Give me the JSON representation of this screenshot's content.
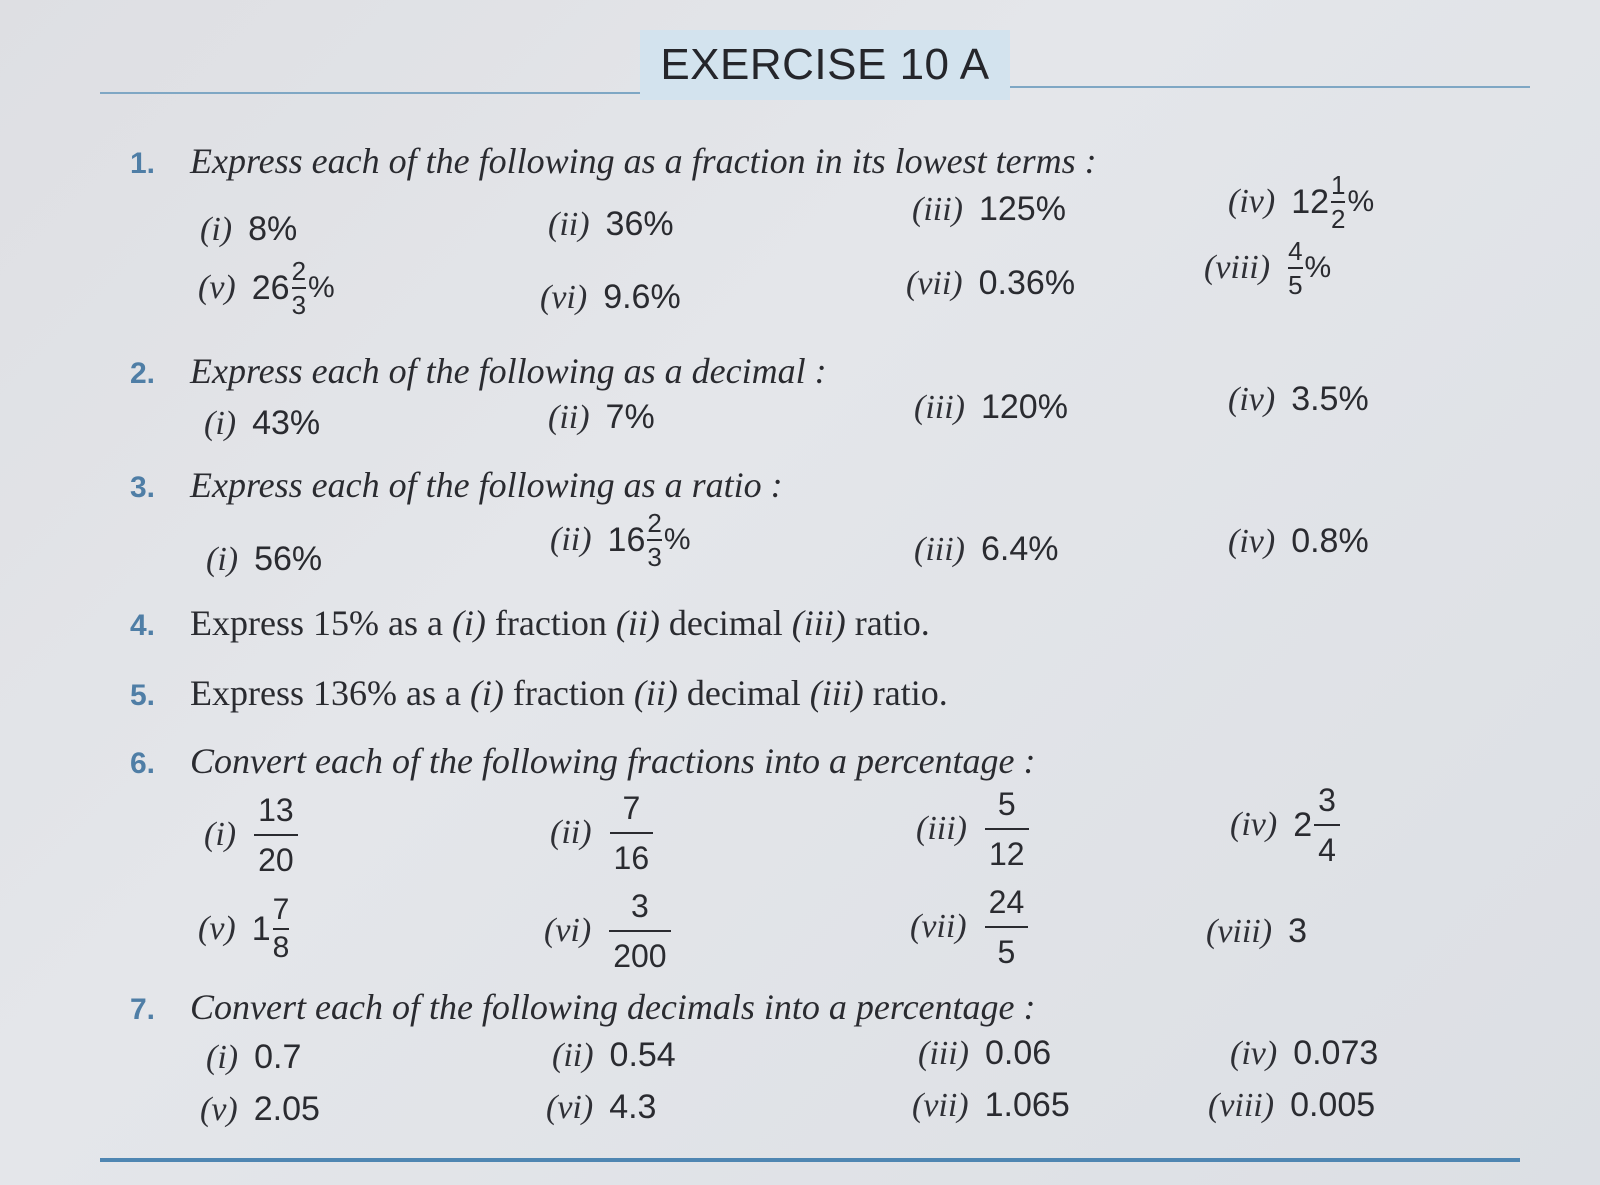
{
  "title": "EXERCISE 10 A",
  "questions": [
    {
      "num": "1.",
      "text": "Express each of the following as a fraction in its lowest terms :"
    },
    {
      "num": "2.",
      "text": "Express each of the following as a decimal :"
    },
    {
      "num": "3.",
      "text": "Express each of the following as a ratio :"
    },
    {
      "num": "4.",
      "pre": "Express 15% as a ",
      "l1": "(i)",
      "w1": " fraction ",
      "l2": "(ii)",
      "w2": " decimal ",
      "l3": "(iii)",
      "w3": " ratio."
    },
    {
      "num": "5.",
      "pre": "Express 136% as a ",
      "l1": "(i)",
      "w1": " fraction ",
      "l2": "(ii)",
      "w2": " decimal ",
      "l3": "(iii)",
      "w3": " ratio."
    },
    {
      "num": "6.",
      "text": "Convert each of the following fractions into a percentage :"
    },
    {
      "num": "7.",
      "text": "Convert each of the following decimals into a percentage :"
    }
  ],
  "q1": [
    {
      "label": "(i)",
      "value": "8%"
    },
    {
      "label": "(ii)",
      "value": "36%"
    },
    {
      "label": "(iii)",
      "value": "125%"
    },
    {
      "label": "(iv)",
      "whole": "12",
      "num": "1",
      "den": "2",
      "suffix": "%"
    },
    {
      "label": "(v)",
      "whole": "26",
      "num": "2",
      "den": "3",
      "suffix": "%"
    },
    {
      "label": "(vi)",
      "value": "9.6%"
    },
    {
      "label": "(vii)",
      "value": "0.36%"
    },
    {
      "label": "(viii)",
      "num": "4",
      "den": "5",
      "suffix": "%"
    }
  ],
  "q2": [
    {
      "label": "(i)",
      "value": "43%"
    },
    {
      "label": "(ii)",
      "value": "7%"
    },
    {
      "label": "(iii)",
      "value": "120%"
    },
    {
      "label": "(iv)",
      "value": "3.5%"
    }
  ],
  "q3": [
    {
      "label": "(i)",
      "value": "56%"
    },
    {
      "label": "(ii)",
      "whole": "16",
      "num": "2",
      "den": "3",
      "suffix": "%"
    },
    {
      "label": "(iii)",
      "value": "6.4%"
    },
    {
      "label": "(iv)",
      "value": "0.8%"
    }
  ],
  "q6": [
    {
      "label": "(i)",
      "num": "13",
      "den": "20"
    },
    {
      "label": "(ii)",
      "num": "7",
      "den": "16"
    },
    {
      "label": "(iii)",
      "num": "5",
      "den": "12"
    },
    {
      "label": "(iv)",
      "whole": "2",
      "num": "3",
      "den": "4"
    },
    {
      "label": "(v)",
      "whole": "1",
      "num": "7",
      "den": "8"
    },
    {
      "label": "(vi)",
      "num": "3",
      "den": "200"
    },
    {
      "label": "(vii)",
      "num": "24",
      "den": "5"
    },
    {
      "label": "(viii)",
      "value": "3"
    }
  ],
  "q7": [
    {
      "label": "(i)",
      "value": "0.7"
    },
    {
      "label": "(ii)",
      "value": "0.54"
    },
    {
      "label": "(iii)",
      "value": "0.06"
    },
    {
      "label": "(iv)",
      "value": "0.073"
    },
    {
      "label": "(v)",
      "value": "2.05"
    },
    {
      "label": "(vi)",
      "value": "4.3"
    },
    {
      "label": "(vii)",
      "value": "1.065"
    },
    {
      "label": "(viii)",
      "value": "0.005"
    }
  ]
}
